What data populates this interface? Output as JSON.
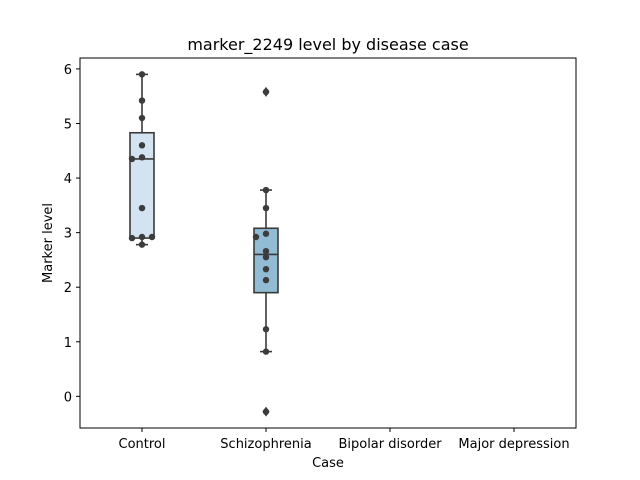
{
  "chart_data": {
    "type": "box",
    "title": "marker_2249 level by disease case",
    "xlabel": "Case",
    "ylabel": "Marker level",
    "categories": [
      "Control",
      "Schizophrenia",
      "Bipolar disorder",
      "Major depression"
    ],
    "ylim": [
      -0.58,
      6.2
    ],
    "yticks": [
      0,
      1,
      2,
      3,
      4,
      5,
      6
    ],
    "grid": false,
    "colors": {
      "Control": "#d4e3f1",
      "Schizophrenia": "#92bbd4",
      "edge": "#3a3a3a",
      "points": "#3c3c3c"
    },
    "boxes": [
      {
        "category": "Control",
        "q1": 2.9,
        "median": 4.35,
        "q3": 4.83,
        "whisker_low": 2.78,
        "whisker_high": 5.9,
        "outliers": [],
        "points": [
          5.9,
          5.42,
          5.1,
          4.6,
          4.38,
          4.35,
          3.45,
          2.92,
          2.9,
          2.92,
          2.78
        ]
      },
      {
        "category": "Schizophrenia",
        "q1": 1.9,
        "median": 2.6,
        "q3": 3.08,
        "whisker_low": 0.82,
        "whisker_high": 3.78,
        "outliers": [
          5.58,
          -0.28
        ],
        "points": [
          3.78,
          3.45,
          2.98,
          2.92,
          2.66,
          2.55,
          2.33,
          2.13,
          1.23,
          0.82,
          5.58,
          -0.28
        ]
      }
    ]
  }
}
